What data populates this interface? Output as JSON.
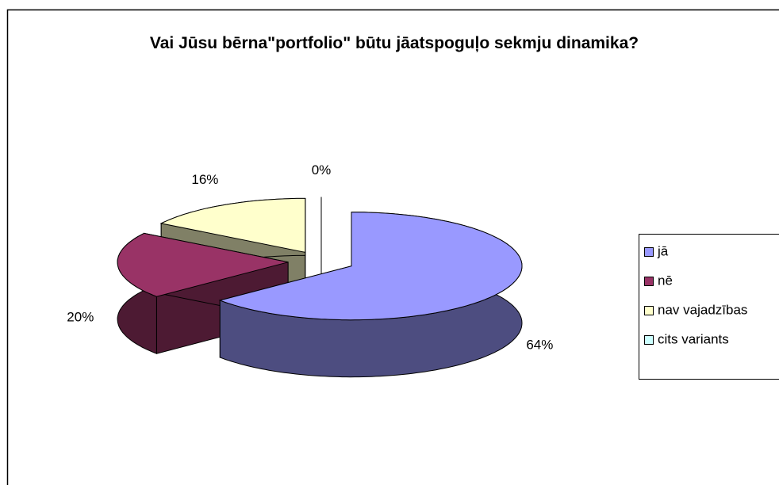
{
  "chart_data": {
    "type": "pie",
    "title": "Vai Jūsu bērna\"portfolio\" būtu jāatspoguļo sekmju dinamika?",
    "categories": [
      "jā",
      "nē",
      "nav vajadzības",
      "cits variants"
    ],
    "values": [
      64,
      20,
      16,
      0
    ],
    "value_labels": [
      "64%",
      "20%",
      "16%",
      "0%"
    ],
    "colors": [
      "#9999ff",
      "#993366",
      "#ffffcc",
      "#ccffff"
    ],
    "legend": "right",
    "three_d": true,
    "exploded": true
  }
}
